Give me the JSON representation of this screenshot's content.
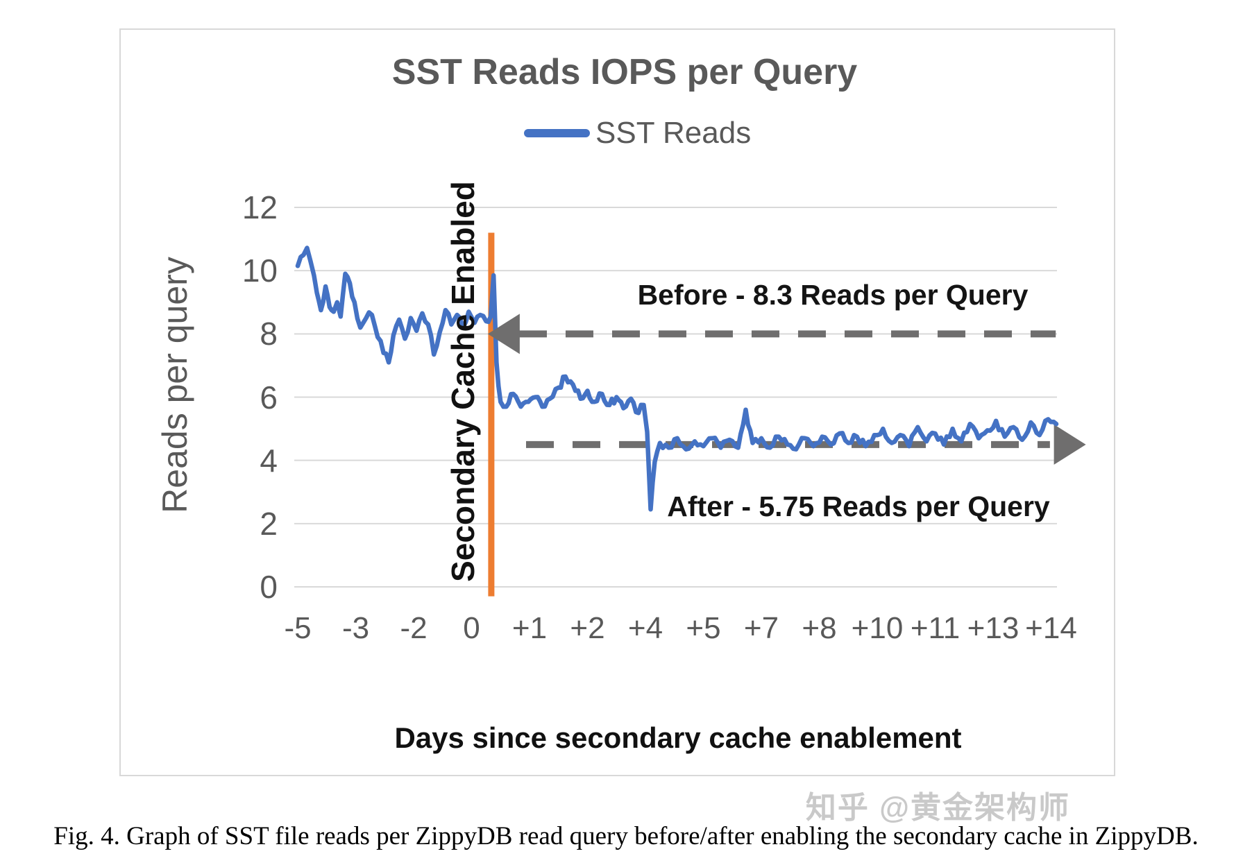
{
  "figure": {
    "caption": "Fig. 4.  Graph of SST file reads per ZippyDB read query before/after enabling the secondary cache in ZippyDB.",
    "watermark": "知乎 @黄金架构师"
  },
  "colors": {
    "series_blue": "#4472C4",
    "event_orange": "#ED7D31",
    "arrow_gray": "#6F6E6E",
    "grid_gray": "#D9D9D9",
    "axis_text_gray": "#595959",
    "annotation_black": "#141414",
    "watermark_gray": "#C9C9C9"
  },
  "chart_data": {
    "type": "line",
    "title": "SST Reads IOPS per Query",
    "xlabel": "Days since secondary cache enablement",
    "ylabel": "Reads per query",
    "ylim": [
      0,
      12
    ],
    "y_ticks": [
      0,
      2,
      4,
      6,
      8,
      10,
      12
    ],
    "x_ticks": [
      "-5",
      "-3",
      "-2",
      "0",
      "+1",
      "+2",
      "+4",
      "+5",
      "+7",
      "+8",
      "+10",
      "+11",
      "+13",
      "+14"
    ],
    "grid": "horizontal",
    "legend": [
      {
        "name": "SST Reads",
        "color": "#4472C4"
      }
    ],
    "event_line": {
      "label": "Secondary Cache Enabled",
      "color": "#ED7D31",
      "x_tick_pos": 3.34,
      "y_span": [
        11.2,
        -0.3
      ]
    },
    "annotations": [
      {
        "id": "before",
        "label": "Before - 8.3 Reads per Query",
        "value": 8.3,
        "line_level": 8.0,
        "arrow_direction": "left",
        "head_tick": 3.28,
        "line_span_ticks": [
          3.82,
          13.08
        ]
      },
      {
        "id": "after",
        "label": "After - 5.75 Reads per Query",
        "value": 5.75,
        "line_level": 4.5,
        "arrow_direction": "right",
        "head_tick": 13.6,
        "line_span_ticks": [
          3.94,
          12.98
        ]
      }
    ],
    "series": [
      {
        "name": "SST Reads",
        "color": "#4472C4",
        "x_unit": "x-axis tick index (0 = day -5, ticks evenly spaced)",
        "noise_amplitude": 0.13,
        "points": [
          [
            0,
            10.15
          ],
          [
            0.1,
            10.5
          ],
          [
            0.16,
            10.72
          ],
          [
            0.22,
            10.3
          ],
          [
            0.28,
            9.85
          ],
          [
            0.33,
            9.3
          ],
          [
            0.4,
            8.75
          ],
          [
            0.48,
            9.5
          ],
          [
            0.55,
            8.85
          ],
          [
            0.62,
            8.7
          ],
          [
            0.68,
            9.0
          ],
          [
            0.74,
            8.55
          ],
          [
            0.82,
            9.9
          ],
          [
            0.9,
            9.6
          ],
          [
            0.98,
            9.0
          ],
          [
            1.08,
            8.2
          ],
          [
            1.18,
            8.5
          ],
          [
            1.28,
            8.6
          ],
          [
            1.38,
            7.9
          ],
          [
            1.48,
            7.4
          ],
          [
            1.57,
            7.1
          ],
          [
            1.65,
            7.95
          ],
          [
            1.75,
            8.45
          ],
          [
            1.85,
            7.85
          ],
          [
            1.95,
            8.5
          ],
          [
            2.05,
            8.1
          ],
          [
            2.15,
            8.65
          ],
          [
            2.25,
            8.3
          ],
          [
            2.35,
            7.35
          ],
          [
            2.45,
            8.05
          ],
          [
            2.55,
            8.75
          ],
          [
            2.65,
            8.3
          ],
          [
            2.75,
            8.6
          ],
          [
            2.85,
            8.2
          ],
          [
            2.95,
            8.7
          ],
          [
            3.05,
            8.35
          ],
          [
            3.15,
            8.6
          ],
          [
            3.25,
            8.4
          ],
          [
            3.33,
            8.55
          ],
          [
            3.38,
            9.85
          ],
          [
            3.43,
            7.1
          ],
          [
            3.5,
            5.85
          ],
          [
            3.6,
            5.7
          ],
          [
            3.72,
            6.1
          ],
          [
            3.85,
            5.7
          ],
          [
            3.98,
            5.85
          ],
          [
            4.1,
            6.0
          ],
          [
            4.22,
            5.7
          ],
          [
            4.35,
            5.95
          ],
          [
            4.5,
            6.3
          ],
          [
            4.62,
            6.65
          ],
          [
            4.75,
            6.4
          ],
          [
            4.88,
            5.95
          ],
          [
            5.0,
            6.2
          ],
          [
            5.12,
            5.85
          ],
          [
            5.25,
            6.1
          ],
          [
            5.38,
            5.75
          ],
          [
            5.5,
            6.0
          ],
          [
            5.62,
            5.65
          ],
          [
            5.75,
            5.95
          ],
          [
            5.88,
            5.5
          ],
          [
            5.97,
            5.75
          ],
          [
            6.03,
            4.9
          ],
          [
            6.09,
            2.45
          ],
          [
            6.16,
            3.95
          ],
          [
            6.25,
            4.55
          ],
          [
            6.4,
            4.4
          ],
          [
            6.55,
            4.7
          ],
          [
            6.7,
            4.35
          ],
          [
            6.85,
            4.6
          ],
          [
            7.0,
            4.45
          ],
          [
            7.15,
            4.7
          ],
          [
            7.3,
            4.4
          ],
          [
            7.45,
            4.65
          ],
          [
            7.6,
            4.4
          ],
          [
            7.73,
            5.6
          ],
          [
            7.85,
            4.55
          ],
          [
            8.0,
            4.7
          ],
          [
            8.15,
            4.4
          ],
          [
            8.3,
            4.75
          ],
          [
            8.45,
            4.5
          ],
          [
            8.6,
            4.35
          ],
          [
            8.75,
            4.7
          ],
          [
            8.9,
            4.45
          ],
          [
            9.05,
            4.75
          ],
          [
            9.2,
            4.5
          ],
          [
            9.35,
            4.85
          ],
          [
            9.5,
            4.55
          ],
          [
            9.65,
            4.75
          ],
          [
            9.8,
            4.45
          ],
          [
            9.95,
            4.8
          ],
          [
            10.1,
            5.0
          ],
          [
            10.25,
            4.55
          ],
          [
            10.4,
            4.8
          ],
          [
            10.55,
            4.45
          ],
          [
            10.7,
            5.05
          ],
          [
            10.85,
            4.6
          ],
          [
            11.0,
            4.85
          ],
          [
            11.15,
            4.5
          ],
          [
            11.3,
            5.0
          ],
          [
            11.45,
            4.6
          ],
          [
            11.6,
            5.15
          ],
          [
            11.75,
            4.7
          ],
          [
            11.9,
            4.95
          ],
          [
            12.05,
            5.25
          ],
          [
            12.2,
            4.75
          ],
          [
            12.35,
            5.05
          ],
          [
            12.5,
            4.65
          ],
          [
            12.65,
            5.2
          ],
          [
            12.8,
            4.8
          ],
          [
            12.95,
            5.3
          ],
          [
            13.09,
            5.15
          ]
        ]
      }
    ]
  }
}
